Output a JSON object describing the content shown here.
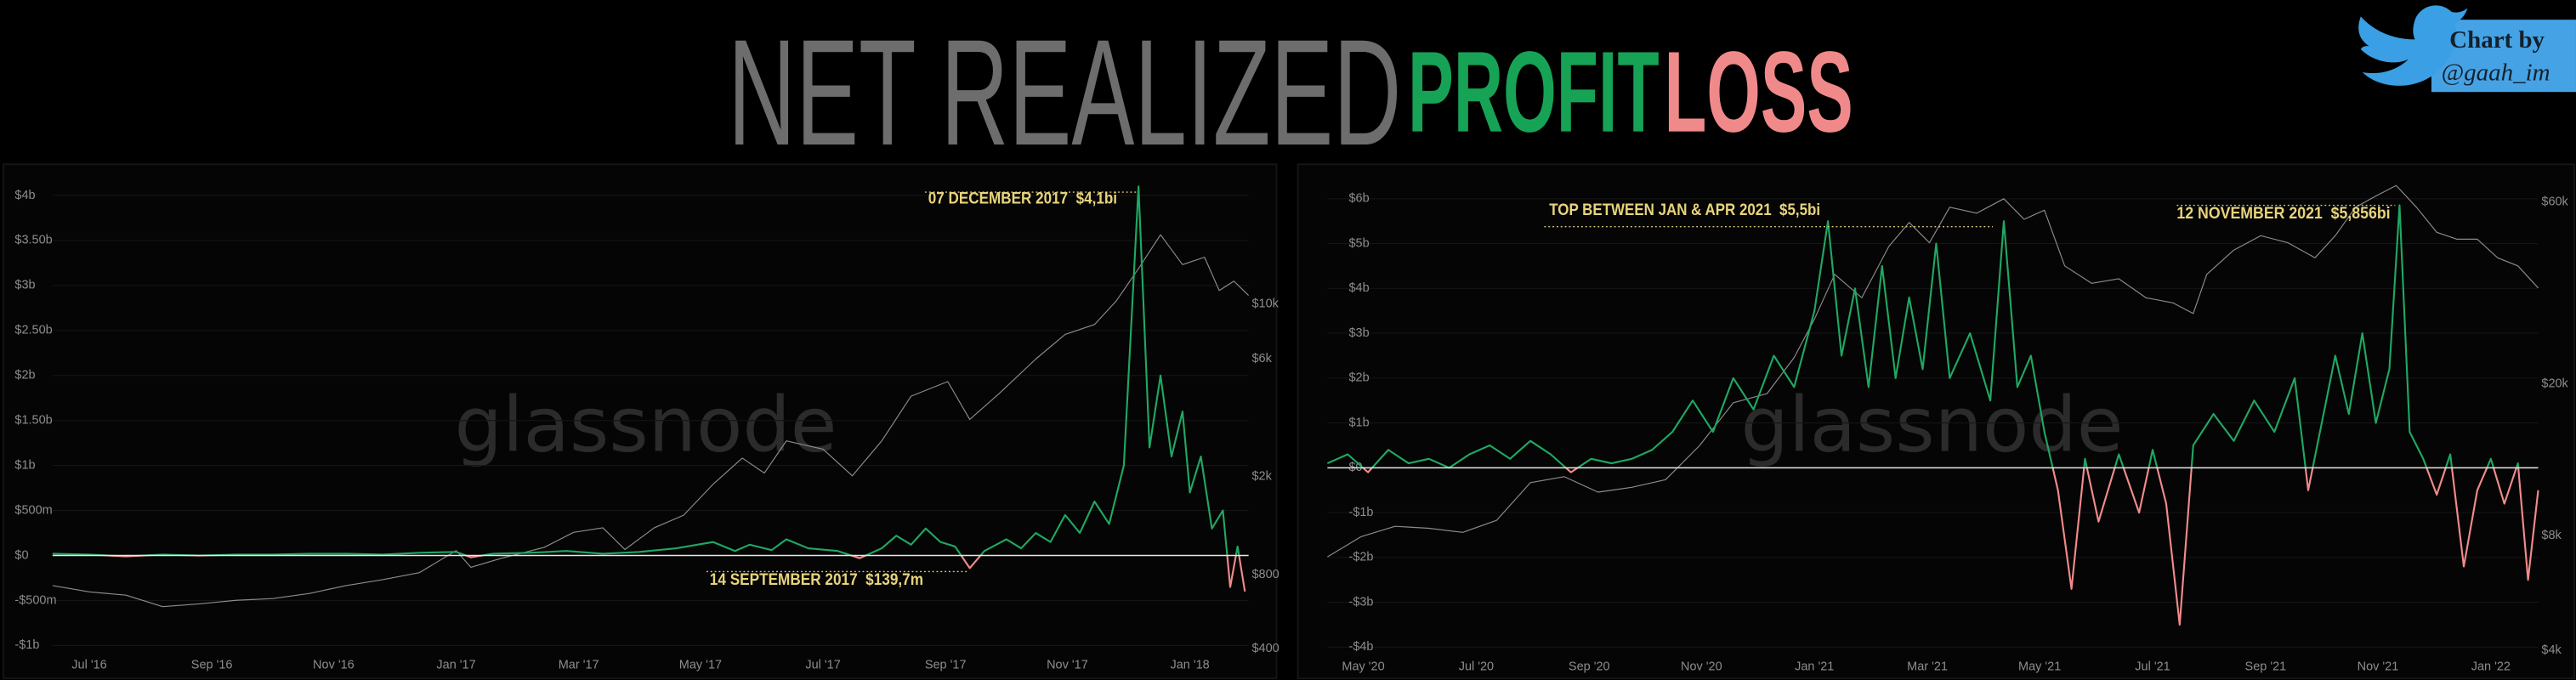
{
  "header": {
    "title": "NET REALIZED",
    "profit": "PROFIT",
    "loss": "LOSS"
  },
  "badge": {
    "line1": "Chart by",
    "line2": "@gaah_im"
  },
  "chart_data": [
    {
      "type": "line",
      "watermark": "glassnode",
      "annotations": [
        "07 DECEMBER 2017  $4,1bi",
        "14 SEPTEMBER 2017  $139,7m"
      ],
      "xlim": [
        2016.45,
        2018.08
      ],
      "xticks": [
        {
          "value": 2016.5,
          "label": "Jul '16"
        },
        {
          "value": 2016.667,
          "label": "Sep '16"
        },
        {
          "value": 2016.833,
          "label": "Nov '16"
        },
        {
          "value": 2017,
          "label": "Jan '17"
        },
        {
          "value": 2017.167,
          "label": "Mar '17"
        },
        {
          "value": 2017.333,
          "label": "May '17"
        },
        {
          "value": 2017.5,
          "label": "Jul '17"
        },
        {
          "value": 2017.667,
          "label": "Sep '17"
        },
        {
          "value": 2017.833,
          "label": "Nov '17"
        },
        {
          "value": 2018,
          "label": "Jan '18"
        }
      ],
      "ylim": [
        -1,
        4
      ],
      "yticks": [
        {
          "value": 4,
          "label": "$4b"
        },
        {
          "value": 3.5,
          "label": "$3.50b"
        },
        {
          "value": 3,
          "label": "$3b"
        },
        {
          "value": 2.5,
          "label": "$2.50b"
        },
        {
          "value": 2,
          "label": "$2b"
        },
        {
          "value": 1.5,
          "label": "$1.50b"
        },
        {
          "value": 1,
          "label": "$1b"
        },
        {
          "value": 0.5,
          "label": "$500m"
        },
        {
          "value": 0,
          "label": "$0"
        },
        {
          "value": -0.5,
          "label": "-$500m"
        },
        {
          "value": -1,
          "label": "-$1b"
        }
      ],
      "y2lim": [
        400,
        26700
      ],
      "y2scale": "log",
      "y2ticks": [
        {
          "value": 400,
          "label": "$400"
        },
        {
          "value": 800,
          "label": "$800"
        },
        {
          "value": 2000,
          "label": "$2k"
        },
        {
          "value": 6000,
          "label": "$6k"
        },
        {
          "value": 10000,
          "label": "$10k"
        }
      ],
      "grid": true,
      "series": [
        {
          "color": "#1fa862",
          "negative_color": "#f28b8b",
          "x": [
            2016.45,
            2016.5,
            2016.55,
            2016.6,
            2016.65,
            2016.7,
            2016.75,
            2016.8,
            2016.85,
            2016.9,
            2016.95,
            2017,
            2017.02,
            2017.05,
            2017.1,
            2017.15,
            2017.2,
            2017.25,
            2017.3,
            2017.35,
            2017.38,
            2017.4,
            2017.43,
            2017.45,
            2017.48,
            2017.52,
            2017.55,
            2017.58,
            2017.6,
            2017.62,
            2017.64,
            2017.66,
            2017.68,
            2017.7,
            2017.72,
            2017.75,
            2017.77,
            2017.79,
            2017.81,
            2017.83,
            2017.85,
            2017.87,
            2017.89,
            2017.91,
            2017.93,
            2017.945,
            2017.96,
            2017.975,
            2017.99,
            2018,
            2018.015,
            2018.03,
            2018.045,
            2018.055,
            2018.065,
            2018.075
          ],
          "values": [
            0.02,
            0.01,
            -0.01,
            0.01,
            0,
            0.01,
            0.01,
            0.02,
            0.02,
            0.01,
            0.03,
            0.04,
            -0.02,
            0.02,
            0.03,
            0.05,
            0.02,
            0.04,
            0.08,
            0.15,
            0.05,
            0.12,
            0.06,
            0.18,
            0.08,
            0.05,
            -0.03,
            0.08,
            0.22,
            0.12,
            0.3,
            0.15,
            0.1,
            -0.14,
            0.05,
            0.18,
            0.08,
            0.25,
            0.15,
            0.45,
            0.25,
            0.6,
            0.35,
            1.0,
            4.1,
            1.2,
            2.0,
            1.1,
            1.6,
            0.7,
            1.1,
            0.3,
            0.5,
            -0.35,
            0.1,
            -0.4
          ]
        },
        {
          "color": "#8c8c8c",
          "axis": "y2",
          "x": [
            2016.45,
            2016.5,
            2016.55,
            2016.6,
            2016.65,
            2016.7,
            2016.75,
            2016.8,
            2016.85,
            2016.9,
            2016.95,
            2017,
            2017.02,
            2017.06,
            2017.12,
            2017.16,
            2017.2,
            2017.23,
            2017.27,
            2017.31,
            2017.35,
            2017.39,
            2017.42,
            2017.45,
            2017.5,
            2017.54,
            2017.58,
            2017.62,
            2017.67,
            2017.7,
            2017.74,
            2017.79,
            2017.83,
            2017.87,
            2017.9,
            2017.93,
            2017.96,
            2017.99,
            2018.02,
            2018.04,
            2018.06,
            2018.08
          ],
          "values": [
            700,
            660,
            640,
            575,
            590,
            610,
            620,
            650,
            700,
            740,
            790,
            970,
            830,
            900,
            1000,
            1150,
            1200,
            980,
            1200,
            1350,
            1800,
            2300,
            2000,
            2700,
            2500,
            1950,
            2700,
            4100,
            4700,
            3300,
            4200,
            5800,
            7300,
            8000,
            10000,
            13500,
            18500,
            14000,
            15000,
            11000,
            12000,
            10500
          ]
        }
      ]
    },
    {
      "type": "line",
      "watermark": "glassnode",
      "annotations": [
        "TOP BETWEEN JAN & APR 2021  $5,5bi",
        "12 NOVEMBER 2021  $5,856bi"
      ],
      "xlim": [
        2020.28,
        2022.07
      ],
      "xticks": [
        {
          "value": 2020.333,
          "label": "May '20"
        },
        {
          "value": 2020.5,
          "label": "Jul '20"
        },
        {
          "value": 2020.667,
          "label": "Sep '20"
        },
        {
          "value": 2020.833,
          "label": "Nov '20"
        },
        {
          "value": 2021,
          "label": "Jan '21"
        },
        {
          "value": 2021.167,
          "label": "Mar '21"
        },
        {
          "value": 2021.333,
          "label": "May '21"
        },
        {
          "value": 2021.5,
          "label": "Jul '21"
        },
        {
          "value": 2021.667,
          "label": "Sep '21"
        },
        {
          "value": 2021.833,
          "label": "Nov '21"
        },
        {
          "value": 2022,
          "label": "Jan '22"
        }
      ],
      "ylim": [
        -4,
        6
      ],
      "yticks": [
        {
          "value": 6,
          "label": "$6b"
        },
        {
          "value": 5,
          "label": "$5b"
        },
        {
          "value": 4,
          "label": "$4b"
        },
        {
          "value": 3,
          "label": "$3b"
        },
        {
          "value": 2,
          "label": "$2b"
        },
        {
          "value": 1,
          "label": "$1b"
        },
        {
          "value": 0,
          "label": "$0"
        },
        {
          "value": -1,
          "label": "-$1b"
        },
        {
          "value": -2,
          "label": "-$2b"
        },
        {
          "value": -3,
          "label": "-$3b"
        },
        {
          "value": -4,
          "label": "-$4b"
        }
      ],
      "y2lim": [
        4000,
        60000
      ],
      "y2scale": "log",
      "y2ticks": [
        {
          "value": 4000,
          "label": "$4k"
        },
        {
          "value": 8000,
          "label": "$8k"
        },
        {
          "value": 20000,
          "label": "$20k"
        },
        {
          "value": 60000,
          "label": "$60k"
        }
      ],
      "grid": true,
      "series": [
        {
          "color": "#1fa862",
          "negative_color": "#f28b8b",
          "x": [
            2020.28,
            2020.31,
            2020.34,
            2020.37,
            2020.4,
            2020.43,
            2020.46,
            2020.49,
            2020.52,
            2020.55,
            2020.58,
            2020.61,
            2020.64,
            2020.67,
            2020.7,
            2020.73,
            2020.76,
            2020.79,
            2020.82,
            2020.85,
            2020.88,
            2020.91,
            2020.94,
            2020.97,
            2021,
            2021.02,
            2021.04,
            2021.06,
            2021.08,
            2021.1,
            2021.12,
            2021.14,
            2021.16,
            2021.18,
            2021.2,
            2021.23,
            2021.26,
            2021.28,
            2021.3,
            2021.32,
            2021.34,
            2021.36,
            2021.38,
            2021.4,
            2021.42,
            2021.45,
            2021.48,
            2021.5,
            2021.52,
            2021.54,
            2021.56,
            2021.59,
            2021.62,
            2021.65,
            2021.68,
            2021.71,
            2021.73,
            2021.75,
            2021.77,
            2021.79,
            2021.81,
            2021.83,
            2021.85,
            2021.865,
            2021.88,
            2021.9,
            2021.92,
            2021.94,
            2021.96,
            2021.98,
            2022,
            2022.02,
            2022.04,
            2022.055,
            2022.07
          ],
          "values": [
            0.1,
            0.3,
            -0.1,
            0.4,
            0.1,
            0.2,
            0,
            0.3,
            0.5,
            0.2,
            0.6,
            0.3,
            -0.1,
            0.2,
            0.1,
            0.2,
            0.4,
            0.8,
            1.5,
            0.8,
            2.0,
            1.3,
            2.5,
            1.8,
            3.5,
            5.5,
            2.5,
            4.0,
            1.8,
            4.5,
            2.0,
            3.8,
            2.2,
            5.0,
            2.0,
            3.0,
            1.5,
            5.5,
            1.8,
            2.5,
            0.8,
            -0.5,
            -2.7,
            0.2,
            -1.2,
            0.3,
            -1.0,
            0.4,
            -0.8,
            -3.5,
            0.5,
            1.2,
            0.6,
            1.5,
            0.8,
            2.0,
            -0.5,
            1.0,
            2.5,
            1.2,
            3.0,
            1.0,
            2.2,
            5.856,
            0.8,
            0.2,
            -0.6,
            0.3,
            -2.2,
            -0.5,
            0.2,
            -0.8,
            0.1,
            -2.5,
            -0.5
          ]
        },
        {
          "color": "#8c8c8c",
          "axis": "y2",
          "x": [
            2020.28,
            2020.33,
            2020.38,
            2020.43,
            2020.48,
            2020.53,
            2020.58,
            2020.63,
            2020.68,
            2020.73,
            2020.78,
            2020.83,
            2020.88,
            2020.93,
            2020.97,
            2021,
            2021.03,
            2021.07,
            2021.11,
            2021.14,
            2021.17,
            2021.2,
            2021.24,
            2021.28,
            2021.31,
            2021.34,
            2021.37,
            2021.41,
            2021.45,
            2021.49,
            2021.53,
            2021.56,
            2021.58,
            2021.62,
            2021.66,
            2021.7,
            2021.74,
            2021.77,
            2021.8,
            2021.83,
            2021.86,
            2021.89,
            2021.92,
            2021.95,
            2021.98,
            2022.01,
            2022.04,
            2022.07
          ],
          "values": [
            6900,
            7800,
            8300,
            8200,
            8000,
            8600,
            10800,
            11200,
            10200,
            10500,
            11000,
            13500,
            17500,
            18500,
            23000,
            29000,
            38000,
            33000,
            45000,
            52000,
            46000,
            57000,
            55000,
            60000,
            53000,
            56000,
            40000,
            36000,
            37000,
            33000,
            32000,
            30000,
            38000,
            44000,
            48000,
            46000,
            42000,
            48000,
            57000,
            61000,
            65000,
            57000,
            49000,
            47000,
            47000,
            42000,
            40000,
            35000
          ]
        }
      ]
    }
  ]
}
